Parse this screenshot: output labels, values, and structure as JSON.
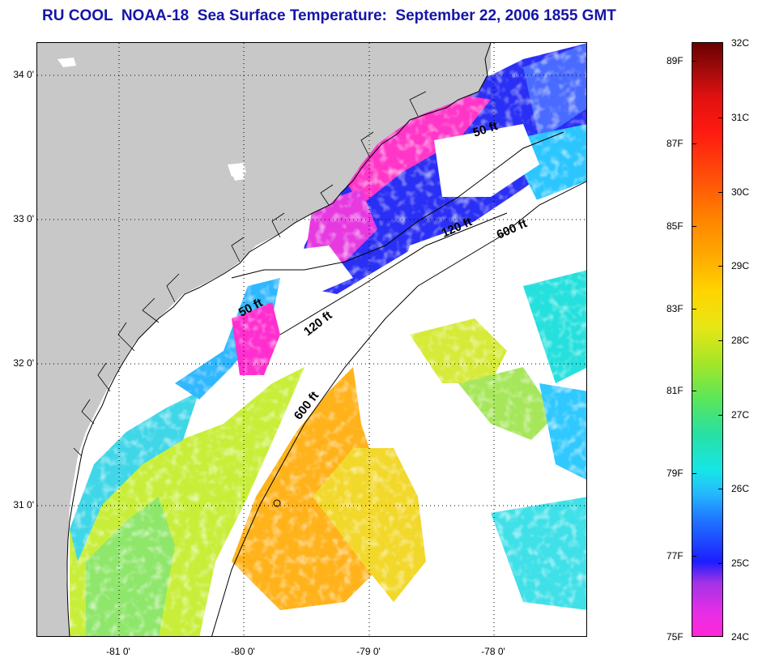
{
  "title": "RU COOL  NOAA-18  Sea Surface Temperature:  September 22, 2006 1855 GMT",
  "lat_labels": [
    "34 0'",
    "33 0'",
    "32 0'",
    "31 0'"
  ],
  "lon_labels": [
    "-81 0'",
    "-80 0'",
    "-79 0'",
    "-78 0'"
  ],
  "contours": [
    "50 ft",
    "120 ft",
    "600 ft",
    "50 ft",
    "120 ft",
    "600 ft"
  ],
  "colorbar": {
    "celsius": [
      "32C",
      "31C",
      "30C",
      "29C",
      "28C",
      "27C",
      "26C",
      "25C",
      "24C"
    ],
    "fahrenheit": [
      "89F",
      "87F",
      "85F",
      "83F",
      "81F",
      "79F",
      "77F",
      "75F"
    ]
  },
  "colors": {
    "title": "#1515a8",
    "land": "#c8c8c8",
    "cloud": "#ffffff",
    "sst_24C": "#ff27d8",
    "sst_25C": "#1d1dff",
    "sst_27C": "#16e6e6",
    "sst_28C": "#5ae65a",
    "sst_29C": "#e6e616",
    "sst_30C": "#ffaa00",
    "sst_32C": "#6a0000"
  }
}
